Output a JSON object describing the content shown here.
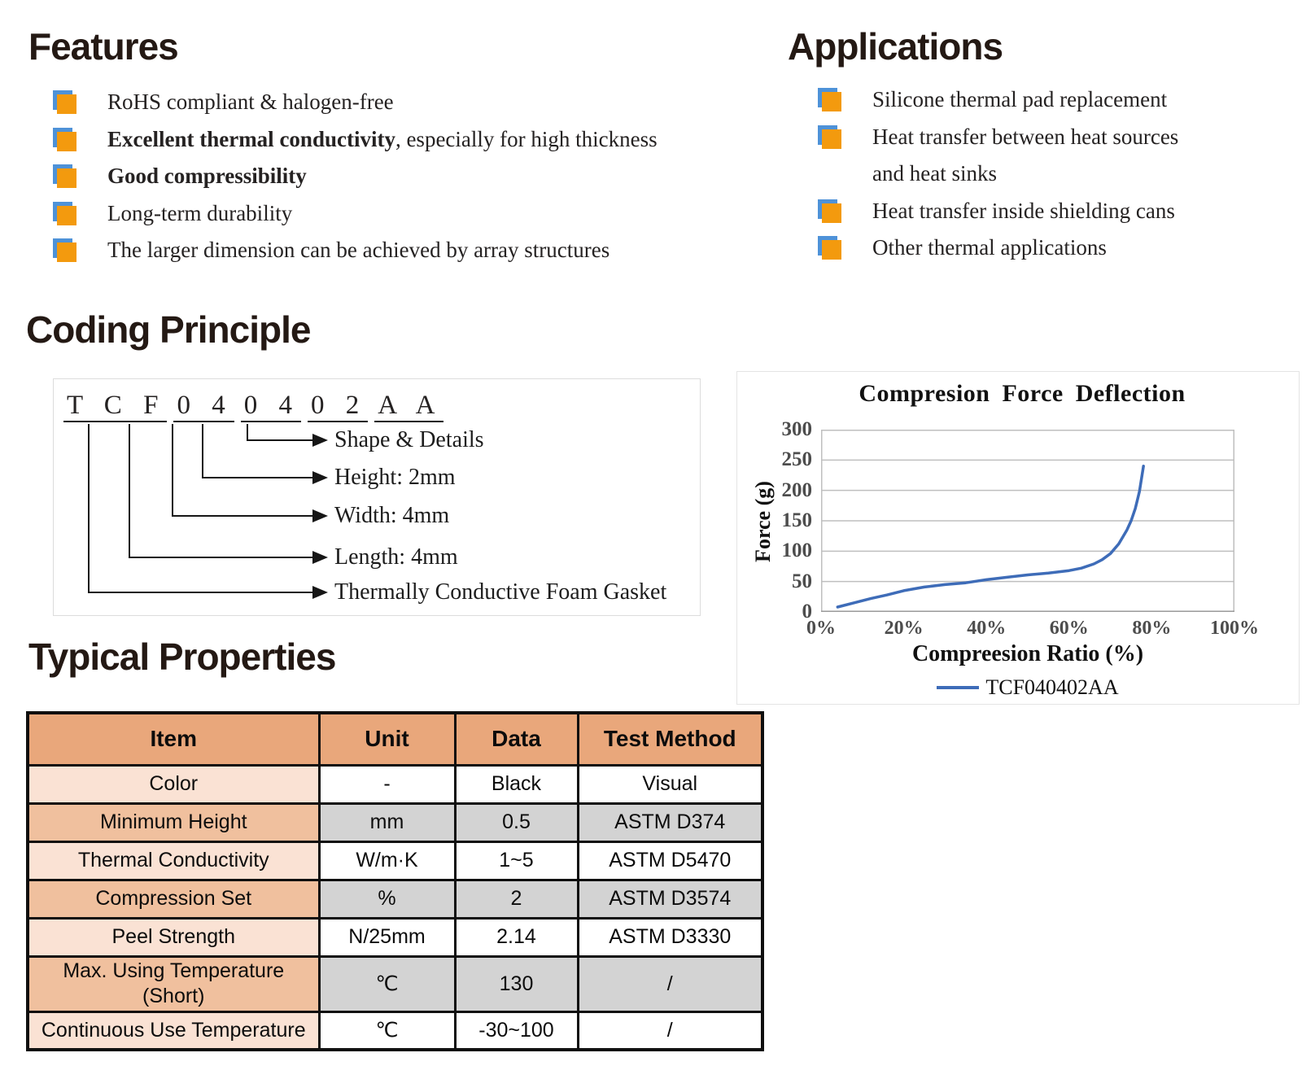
{
  "features": {
    "title": "Features",
    "items": [
      {
        "bold": "",
        "text": "RoHS compliant & halogen-free"
      },
      {
        "bold": "Excellent thermal conductivity",
        "text": ", especially for high thickness"
      },
      {
        "bold": "Good compressibility",
        "text": ""
      },
      {
        "bold": "",
        "text": "Long-term durability"
      },
      {
        "bold": "",
        "text": "The larger dimension can be achieved by array structures"
      }
    ]
  },
  "applications": {
    "title": "Applications",
    "items": [
      {
        "text": "Silicone thermal pad replacement"
      },
      {
        "text": "Heat transfer between heat sources\nand heat sinks"
      },
      {
        "text": "Heat transfer inside shielding cans"
      },
      {
        "text": "Other thermal applications"
      }
    ]
  },
  "coding": {
    "title": "Coding Principle",
    "code_groups": [
      "T C F",
      "0 4",
      "0 4",
      "0 2",
      "A A"
    ],
    "labels": [
      "Shape & Details",
      "Height: 2mm",
      "Width: 4mm",
      "Length: 4mm",
      "Thermally Conductive Foam Gasket"
    ]
  },
  "chart_data": {
    "type": "line",
    "title": "Compresion Force Deflection",
    "xlabel": "Compreesion Ratio (%)",
    "ylabel": "Force (g)",
    "xlim": [
      0,
      100
    ],
    "ylim": [
      0,
      300
    ],
    "x_ticks": [
      "0%",
      "20%",
      "40%",
      "60%",
      "80%",
      "100%"
    ],
    "y_ticks": [
      0,
      50,
      100,
      150,
      200,
      250,
      300
    ],
    "grid": true,
    "legend_position": "bottom",
    "series": [
      {
        "name": "TCF040402AA",
        "color": "#3E6CB8",
        "points": [
          [
            4,
            8
          ],
          [
            8,
            15
          ],
          [
            12,
            22
          ],
          [
            16,
            28
          ],
          [
            20,
            35
          ],
          [
            25,
            41
          ],
          [
            30,
            45
          ],
          [
            35,
            48
          ],
          [
            40,
            53
          ],
          [
            45,
            57
          ],
          [
            50,
            61
          ],
          [
            55,
            64
          ],
          [
            60,
            68
          ],
          [
            63,
            72
          ],
          [
            66,
            79
          ],
          [
            68,
            86
          ],
          [
            70,
            96
          ],
          [
            72,
            112
          ],
          [
            74,
            135
          ],
          [
            75,
            150
          ],
          [
            76,
            170
          ],
          [
            77,
            198
          ],
          [
            78,
            240
          ]
        ]
      }
    ]
  },
  "properties": {
    "title": "Typical Properties",
    "columns": [
      "Item",
      "Unit",
      "Data",
      "Test Method"
    ],
    "rows": [
      {
        "item": "Color",
        "unit": "-",
        "data": "Black",
        "method": "Visual",
        "shaded": false
      },
      {
        "item": "Minimum Height",
        "unit": "mm",
        "data": "0.5",
        "method": "ASTM D374",
        "shaded": true
      },
      {
        "item": "Thermal Conductivity",
        "unit": "W/m·K",
        "data": "1~5",
        "method": "ASTM D5470",
        "shaded": false
      },
      {
        "item": "Compression Set",
        "unit": "%",
        "data": "2",
        "method": "ASTM D3574",
        "shaded": true
      },
      {
        "item": "Peel Strength",
        "unit": "N/25mm",
        "data": "2.14",
        "method": "ASTM D3330",
        "shaded": false
      },
      {
        "item": "Max. Using Temperature\n(Short)",
        "unit": "℃",
        "data": "130",
        "method": "/",
        "shaded": true,
        "tall": true
      },
      {
        "item": "Continuous Use Temperature",
        "unit": "℃",
        "data": "-30~100",
        "method": "/",
        "shaded": false
      }
    ]
  },
  "colors": {
    "accent_orange": "#F39A0E",
    "accent_blue": "#4E92D8",
    "heading_text": "#241914",
    "table_header_bg": "#E9A77B",
    "table_item_light_bg": "#FAE2D4",
    "table_item_medium_bg": "#F0C09E",
    "table_shaded_bg": "#D3D3D3",
    "table_white_bg": "#FFFFFF",
    "chart_line": "#3E6CB8",
    "chart_grid": "#BFBFBF",
    "chart_tick_text": "#4d4d4d"
  }
}
